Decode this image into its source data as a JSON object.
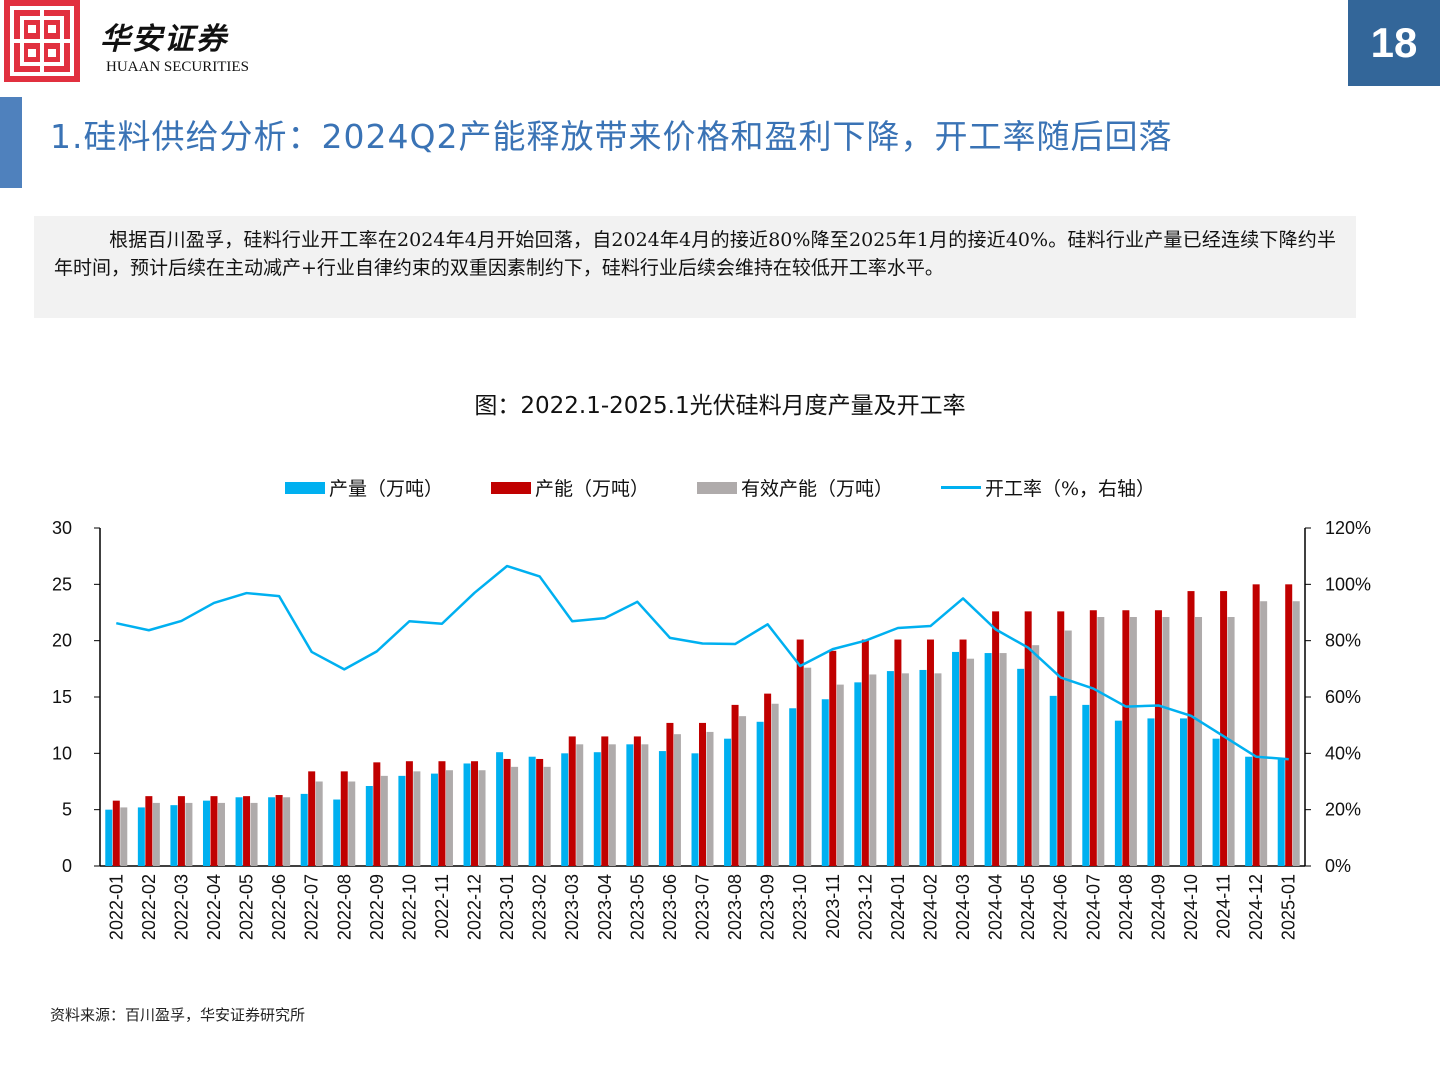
{
  "header": {
    "logo_cn": "华安证券",
    "logo_en": "HUAAN SECURITIES",
    "page_number": "18",
    "brand_color": "#e1303f",
    "accent_color": "#336699"
  },
  "slide_title": "1.硅料供给分析：2024Q2产能释放带来价格和盈利下降，开工率随后回落",
  "summary": "根据百川盈孚，硅料行业开工率在2024年4月开始回落，自2024年4月的接近80%降至2025年1月的接近40%。硅料行业产量已经连续下降约半年时间，预计后续在主动减产+行业自律约束的双重因素制约下，硅料行业后续会维持在较低开工率水平。",
  "source": "资料来源：百川盈孚，华安证券研究所",
  "chart_data": {
    "type": "bar",
    "title": "图：2022.1-2025.1光伏硅料月度产量及开工率",
    "xlabel": "",
    "ylabel": "",
    "ylim": [
      0,
      30
    ],
    "yticks": [
      "0",
      "5",
      "10",
      "15",
      "20",
      "25",
      "30"
    ],
    "y2lim": [
      0,
      120
    ],
    "y2ticks": [
      "0%",
      "20%",
      "40%",
      "60%",
      "80%",
      "100%",
      "120%"
    ],
    "legend_position": "top",
    "grid": false,
    "categories": [
      "2022-01",
      "2022-02",
      "2022-03",
      "2022-04",
      "2022-05",
      "2022-06",
      "2022-07",
      "2022-08",
      "2022-09",
      "2022-10",
      "2022-11",
      "2022-12",
      "2023-01",
      "2023-02",
      "2023-03",
      "2023-04",
      "2023-05",
      "2023-06",
      "2023-07",
      "2023-08",
      "2023-09",
      "2023-10",
      "2023-11",
      "2023-12",
      "2024-01",
      "2024-02",
      "2024-03",
      "2024-04",
      "2024-05",
      "2024-06",
      "2024-07",
      "2024-08",
      "2024-09",
      "2024-10",
      "2024-11",
      "2024-12",
      "2025-01"
    ],
    "series": [
      {
        "name": "产量（万吨）",
        "kind": "bar",
        "axis": "left",
        "color": "#00b0f0",
        "values": [
          5.0,
          5.2,
          5.4,
          5.8,
          6.1,
          6.1,
          6.4,
          5.9,
          7.1,
          8.0,
          8.2,
          9.1,
          10.1,
          9.7,
          10.0,
          10.1,
          10.8,
          10.2,
          10.0,
          11.3,
          12.8,
          14.0,
          14.8,
          16.3,
          17.3,
          17.4,
          19.0,
          18.9,
          17.5,
          15.1,
          14.3,
          12.9,
          13.1,
          13.1,
          11.3,
          9.7,
          9.5
        ]
      },
      {
        "name": "产能（万吨）",
        "kind": "bar",
        "axis": "left",
        "color": "#c00000",
        "values": [
          5.8,
          6.2,
          6.2,
          6.2,
          6.2,
          6.3,
          8.4,
          8.4,
          9.2,
          9.3,
          9.3,
          9.3,
          9.5,
          9.5,
          11.5,
          11.5,
          11.5,
          12.7,
          12.7,
          14.3,
          15.3,
          20.1,
          19.1,
          20.1,
          20.1,
          20.1,
          20.1,
          22.6,
          22.6,
          22.6,
          22.7,
          22.7,
          22.7,
          24.4,
          24.4,
          25.0,
          25.0
        ]
      },
      {
        "name": "有效产能（万吨）",
        "kind": "bar",
        "axis": "left",
        "color": "#afabab",
        "values": [
          5.2,
          5.6,
          5.6,
          5.6,
          5.6,
          6.1,
          7.5,
          7.5,
          8.0,
          8.4,
          8.5,
          8.5,
          8.8,
          8.8,
          10.8,
          10.8,
          10.8,
          11.7,
          11.9,
          13.3,
          14.4,
          17.6,
          16.1,
          17.0,
          17.1,
          17.1,
          18.4,
          18.9,
          19.6,
          20.9,
          22.1,
          22.1,
          22.1,
          22.1,
          22.1,
          23.5,
          23.5
        ]
      },
      {
        "name": "开工率（%，右轴）",
        "kind": "line",
        "axis": "right",
        "color": "#00b0f0",
        "values": [
          86.2,
          83.7,
          87.0,
          93.4,
          96.9,
          95.8,
          76.0,
          69.8,
          76.2,
          86.9,
          86.0,
          97.0,
          106.5,
          102.8,
          86.9,
          88.0,
          93.8,
          81.0,
          79.0,
          78.8,
          85.8,
          71.0,
          77.0,
          80.0,
          84.5,
          85.2,
          95.0,
          84.0,
          77.5,
          66.9,
          63.0,
          56.6,
          57.0,
          53.3,
          46.1,
          38.8,
          37.9
        ]
      }
    ]
  }
}
